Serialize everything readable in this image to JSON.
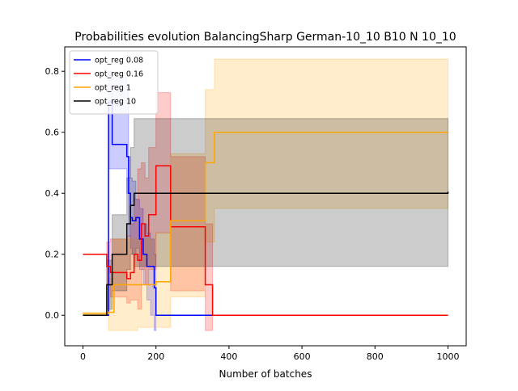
{
  "chart_data": {
    "type": "line",
    "title": "Probabilities evolution BalancingSharp German-10_10 B10 N 10_10",
    "xlabel": "Number of batches",
    "ylabel": "",
    "xlim": [
      -50,
      1050
    ],
    "ylim": [
      -0.1,
      0.88
    ],
    "xticks": [
      0,
      200,
      400,
      600,
      800,
      1000
    ],
    "yticks": [
      0.0,
      0.2,
      0.4,
      0.6,
      0.8
    ],
    "grid": false,
    "legend_position": "top-left",
    "series": [
      {
        "name": "opt_reg 0.08",
        "color": "#0000ff",
        "x": [
          0,
          70,
          80,
          120,
          125,
          130,
          135,
          145,
          155,
          165,
          175,
          185,
          195,
          200,
          1000
        ],
        "y": [
          0.0,
          0.7,
          0.56,
          0.52,
          0.4,
          0.32,
          0.31,
          0.32,
          0.25,
          0.2,
          0.16,
          0.16,
          0.09,
          0.0,
          0.0
        ],
        "upper": [
          0.0,
          0.8,
          0.78,
          0.75,
          0.52,
          0.45,
          0.44,
          0.38,
          0.35,
          0.3,
          0.27,
          0.25,
          0.2,
          0.0,
          0.0
        ],
        "lower": [
          0.0,
          0.48,
          0.48,
          0.4,
          0.26,
          0.22,
          0.2,
          0.22,
          0.15,
          0.1,
          0.05,
          0.0,
          -0.05,
          0.0,
          0.0
        ]
      },
      {
        "name": "opt_reg 0.16",
        "color": "#ff0000",
        "x": [
          0,
          65,
          75,
          120,
          130,
          140,
          150,
          160,
          170,
          180,
          200,
          240,
          335,
          355,
          1000
        ],
        "y": [
          0.2,
          0.16,
          0.14,
          0.12,
          0.14,
          0.2,
          0.18,
          0.3,
          0.26,
          0.33,
          0.49,
          0.29,
          0.1,
          0.0,
          0.0
        ],
        "upper": [
          0.2,
          0.24,
          0.25,
          0.26,
          0.3,
          0.38,
          0.48,
          0.5,
          0.45,
          0.55,
          0.73,
          0.52,
          0.3,
          0.0,
          0.0
        ],
        "lower": [
          0.2,
          0.1,
          0.06,
          0.04,
          0.05,
          0.05,
          0.02,
          0.15,
          0.1,
          0.15,
          0.27,
          0.08,
          -0.05,
          0.0,
          0.0
        ]
      },
      {
        "name": "opt_reg 1",
        "color": "#ffa500",
        "x": [
          0,
          70,
          85,
          150,
          200,
          240,
          335,
          360,
          1000
        ],
        "y": [
          0.005,
          0.01,
          0.1,
          0.1,
          0.11,
          0.31,
          0.5,
          0.6,
          0.6
        ],
        "upper": [
          0.01,
          0.12,
          0.25,
          0.25,
          0.27,
          0.53,
          0.74,
          0.84,
          0.84
        ],
        "lower": [
          0.0,
          -0.05,
          -0.05,
          -0.04,
          -0.04,
          0.06,
          0.24,
          0.35,
          0.35
        ]
      },
      {
        "name": "opt_reg 10",
        "color": "#000000",
        "x": [
          0,
          65,
          80,
          120,
          130,
          140,
          1000
        ],
        "y": [
          0.0,
          0.1,
          0.2,
          0.3,
          0.36,
          0.4,
          0.405
        ],
        "upper": [
          0.0,
          0.18,
          0.33,
          0.45,
          0.55,
          0.645,
          0.645
        ],
        "lower": [
          0.0,
          0.02,
          0.08,
          0.15,
          0.2,
          0.16,
          0.16
        ]
      }
    ]
  }
}
